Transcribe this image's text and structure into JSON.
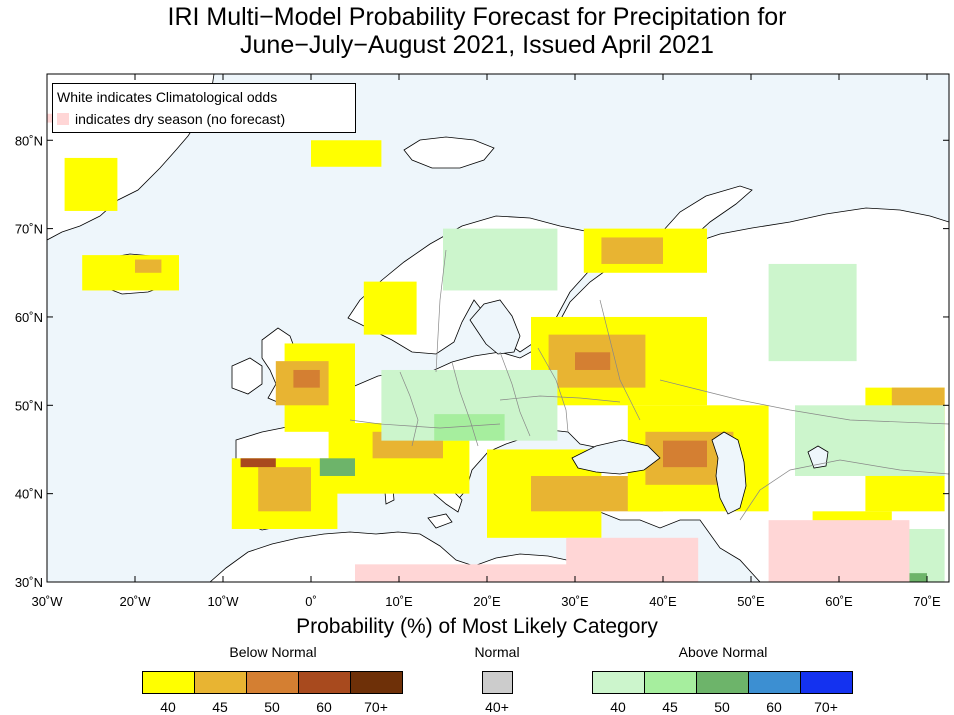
{
  "title": {
    "line1": "IRI Multi−Model Probability Forecast for Precipitation for",
    "line2": "June−July−August 2021, Issued April 2021"
  },
  "note": {
    "line1": "White indicates Climatological odds",
    "line2": "indicates dry season (no forecast)"
  },
  "axes": {
    "x_ticks": [
      "30˚W",
      "20˚W",
      "10˚W",
      "0˚",
      "10˚E",
      "20˚E",
      "30˚E",
      "40˚E",
      "50˚E",
      "60˚E",
      "70˚E"
    ],
    "x_values": [
      -30,
      -20,
      -10,
      0,
      10,
      20,
      30,
      40,
      50,
      60,
      70
    ],
    "y_ticks": [
      "80˚N",
      "70˚N",
      "60˚N",
      "50˚N",
      "40˚N",
      "30˚N"
    ],
    "y_values": [
      80,
      70,
      60,
      50,
      40,
      30
    ],
    "lon_range": [
      -30,
      72.5
    ],
    "lat_range": [
      30,
      87.5
    ]
  },
  "legend": {
    "title": "Probability (%) of Most Likely Category",
    "below_normal": {
      "heading": "Below Normal",
      "colors": [
        "#ffff00",
        "#e8b432",
        "#d47f32",
        "#a84a1e",
        "#6e3008"
      ],
      "labels": [
        "40",
        "45",
        "50",
        "60",
        "70+"
      ]
    },
    "normal": {
      "heading": "Normal",
      "colors": [
        "#cccccc"
      ],
      "labels": [
        "40+"
      ]
    },
    "above_normal": {
      "heading": "Above Normal",
      "colors": [
        "#ccf5cc",
        "#a6ee9e",
        "#6db46a",
        "#3c8fd2",
        "#1432f0"
      ],
      "labels": [
        "40",
        "45",
        "50",
        "60",
        "70+"
      ]
    }
  },
  "colors": {
    "ocean": "#eef6fb",
    "land_climatology": "#ffffff",
    "dry_season": "#ffd6d6",
    "coastline": "#000000",
    "border": "#888888"
  },
  "forecast_regions": [
    {
      "category": "below",
      "level": 40,
      "lon": [
        -28,
        -22
      ],
      "lat": [
        72,
        78
      ]
    },
    {
      "category": "below",
      "level": 40,
      "lon": [
        -26,
        -15
      ],
      "lat": [
        63,
        67
      ]
    },
    {
      "category": "below",
      "level": 45,
      "lon": [
        -20,
        -17
      ],
      "lat": [
        65,
        66.5
      ]
    },
    {
      "category": "below",
      "level": 40,
      "lon": [
        -3,
        5
      ],
      "lat": [
        47,
        57
      ]
    },
    {
      "category": "below",
      "level": 45,
      "lon": [
        -4,
        2
      ],
      "lat": [
        50,
        55
      ]
    },
    {
      "category": "below",
      "level": 50,
      "lon": [
        -2,
        1
      ],
      "lat": [
        52,
        54
      ]
    },
    {
      "category": "below",
      "level": 40,
      "lon": [
        -9,
        3
      ],
      "lat": [
        36,
        44
      ]
    },
    {
      "category": "below",
      "level": 45,
      "lon": [
        -6,
        0
      ],
      "lat": [
        38,
        43
      ]
    },
    {
      "category": "below",
      "level": 60,
      "lon": [
        -8,
        -4
      ],
      "lat": [
        43,
        44
      ]
    },
    {
      "category": "below",
      "level": 40,
      "lon": [
        2,
        18
      ],
      "lat": [
        40,
        48
      ]
    },
    {
      "category": "below",
      "level": 45,
      "lon": [
        7,
        15
      ],
      "lat": [
        44,
        47
      ]
    },
    {
      "category": "below",
      "level": 40,
      "lon": [
        20,
        33
      ],
      "lat": [
        35,
        45
      ]
    },
    {
      "category": "below",
      "level": 45,
      "lon": [
        25,
        40
      ],
      "lat": [
        38,
        42
      ]
    },
    {
      "category": "below",
      "level": 40,
      "lon": [
        25,
        45
      ],
      "lat": [
        50,
        60
      ]
    },
    {
      "category": "below",
      "level": 45,
      "lon": [
        27,
        38
      ],
      "lat": [
        52,
        58
      ]
    },
    {
      "category": "below",
      "level": 50,
      "lon": [
        30,
        34
      ],
      "lat": [
        54,
        56
      ]
    },
    {
      "category": "below",
      "level": 40,
      "lon": [
        36,
        52
      ],
      "lat": [
        38,
        50
      ]
    },
    {
      "category": "below",
      "level": 45,
      "lon": [
        38,
        48
      ],
      "lat": [
        41,
        47
      ]
    },
    {
      "category": "below",
      "level": 50,
      "lon": [
        40,
        45
      ],
      "lat": [
        43,
        46
      ]
    },
    {
      "category": "below",
      "level": 40,
      "lon": [
        31,
        45
      ],
      "lat": [
        65,
        70
      ]
    },
    {
      "category": "below",
      "level": 45,
      "lon": [
        33,
        40
      ],
      "lat": [
        66,
        69
      ]
    },
    {
      "category": "below",
      "level": 40,
      "lon": [
        6,
        12
      ],
      "lat": [
        58,
        64
      ]
    },
    {
      "category": "below",
      "level": 40,
      "lon": [
        63,
        72
      ],
      "lat": [
        38,
        52
      ]
    },
    {
      "category": "below",
      "level": 45,
      "lon": [
        66,
        72
      ],
      "lat": [
        46,
        52
      ]
    },
    {
      "category": "below",
      "level": 40,
      "lon": [
        57,
        66
      ],
      "lat": [
        30,
        38
      ]
    },
    {
      "category": "below",
      "level": 40,
      "lon": [
        0,
        8
      ],
      "lat": [
        77,
        80
      ]
    },
    {
      "category": "above",
      "level": 40,
      "lon": [
        8,
        28
      ],
      "lat": [
        46,
        54
      ]
    },
    {
      "category": "above",
      "level": 45,
      "lon": [
        14,
        22
      ],
      "lat": [
        46,
        49
      ]
    },
    {
      "category": "above",
      "level": 50,
      "lon": [
        1,
        5
      ],
      "lat": [
        42,
        44
      ]
    },
    {
      "category": "above",
      "level": 40,
      "lon": [
        15,
        28
      ],
      "lat": [
        63,
        70
      ]
    },
    {
      "category": "above",
      "level": 40,
      "lon": [
        52,
        62
      ],
      "lat": [
        55,
        66
      ]
    },
    {
      "category": "above",
      "level": 40,
      "lon": [
        55,
        72
      ],
      "lat": [
        42,
        50
      ]
    },
    {
      "category": "above",
      "level": 40,
      "lon": [
        64,
        72
      ],
      "lat": [
        30,
        36
      ]
    },
    {
      "category": "above",
      "level": 50,
      "lon": [
        68,
        70
      ],
      "lat": [
        30,
        31
      ]
    },
    {
      "category": "dry",
      "level": 0,
      "lon": [
        5,
        30
      ],
      "lat": [
        30,
        32
      ]
    },
    {
      "category": "dry",
      "level": 0,
      "lon": [
        29,
        44
      ],
      "lat": [
        30,
        35
      ]
    },
    {
      "category": "dry",
      "level": 0,
      "lon": [
        52,
        68
      ],
      "lat": [
        30,
        37
      ]
    },
    {
      "category": "dry",
      "level": 0,
      "lon": [
        -30,
        -29
      ],
      "lat": [
        82,
        83
      ]
    }
  ]
}
